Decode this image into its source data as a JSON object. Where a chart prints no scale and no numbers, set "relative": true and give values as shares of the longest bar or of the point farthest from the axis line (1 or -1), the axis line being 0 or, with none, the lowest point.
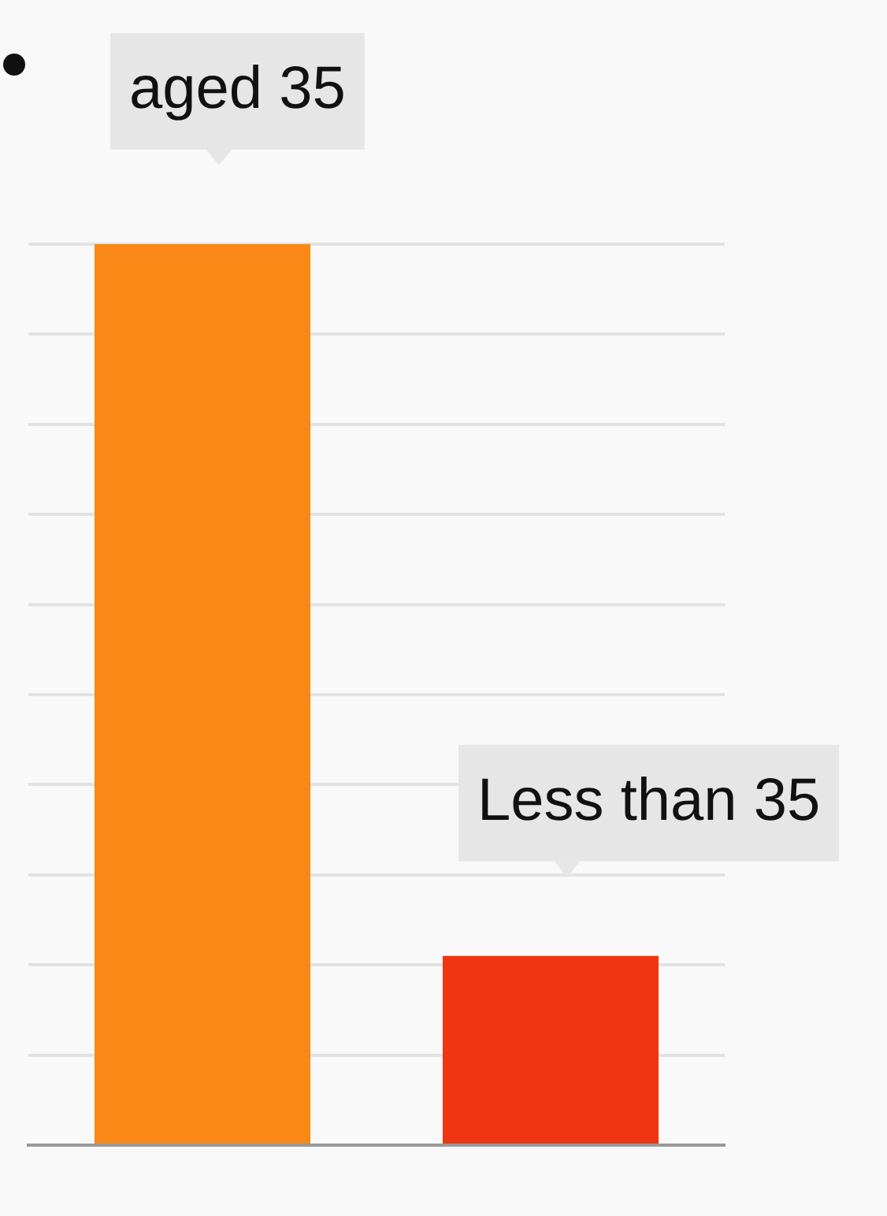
{
  "chart_data": {
    "type": "bar",
    "relative": true,
    "categories": [
      "aged 35",
      "Less than 35"
    ],
    "values": [
      1,
      0.21
    ],
    "colors": [
      "#fa8816",
      "#f03512"
    ],
    "grid": "y",
    "legend": false
  }
}
